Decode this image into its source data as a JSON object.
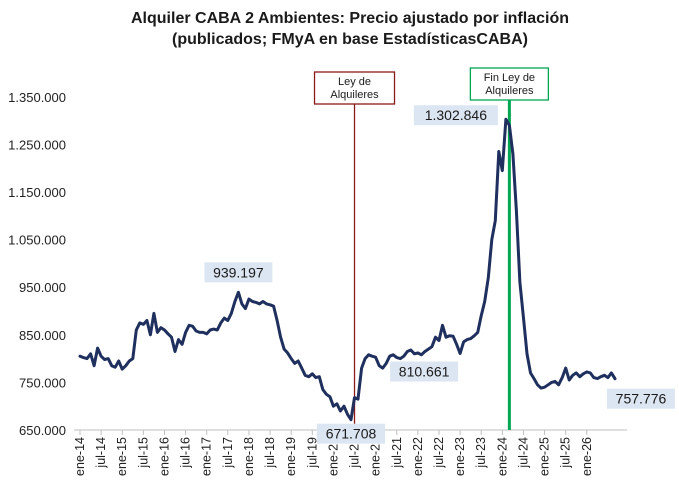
{
  "chart_data": {
    "type": "line",
    "title": "Alquiler CABA 2 Ambientes: Precio ajustado por inflación",
    "subtitle": "(publicados; FMyA en base EstadísticasCABA)",
    "ylim": [
      650000,
      1400000
    ],
    "yticks": [
      "650.000",
      "750.000",
      "850.000",
      "950.000",
      "1.050.000",
      "1.150.000",
      "1.250.000",
      "1.350.000"
    ],
    "ytick_values": [
      650000,
      750000,
      850000,
      950000,
      1050000,
      1150000,
      1250000,
      1350000
    ],
    "xticks": [
      "ene-14",
      "jul-14",
      "ene-15",
      "jul-15",
      "ene-16",
      "jul-16",
      "ene-17",
      "jul-17",
      "ene-18",
      "jul-18",
      "ene-19",
      "jul-19",
      "ene-20",
      "jul-20",
      "ene-21",
      "jul-21",
      "ene-22",
      "jul-22",
      "ene-23",
      "jul-23",
      "ene-24",
      "jul-24",
      "ene-25",
      "jul-25",
      "ene-26"
    ],
    "grid": false,
    "series": [
      {
        "color": "#1f2f5e",
        "points": [
          [
            "2014-01",
            805000
          ],
          [
            "2014-02",
            802000
          ],
          [
            "2014-03",
            800000
          ],
          [
            "2014-04",
            810000
          ],
          [
            "2014-05",
            785000
          ],
          [
            "2014-06",
            822000
          ],
          [
            "2014-07",
            805000
          ],
          [
            "2014-08",
            798000
          ],
          [
            "2014-09",
            800000
          ],
          [
            "2014-10",
            785000
          ],
          [
            "2014-11",
            782000
          ],
          [
            "2014-12",
            795000
          ],
          [
            "2015-01",
            778000
          ],
          [
            "2015-02",
            785000
          ],
          [
            "2015-03",
            795000
          ],
          [
            "2015-04",
            800000
          ],
          [
            "2015-05",
            860000
          ],
          [
            "2015-06",
            875000
          ],
          [
            "2015-07",
            872000
          ],
          [
            "2015-08",
            880000
          ],
          [
            "2015-09",
            850000
          ],
          [
            "2015-10",
            895000
          ],
          [
            "2015-11",
            855000
          ],
          [
            "2015-12",
            865000
          ],
          [
            "2016-01",
            860000
          ],
          [
            "2016-02",
            852000
          ],
          [
            "2016-03",
            845000
          ],
          [
            "2016-04",
            815000
          ],
          [
            "2016-05",
            840000
          ],
          [
            "2016-06",
            830000
          ],
          [
            "2016-07",
            855000
          ],
          [
            "2016-08",
            870000
          ],
          [
            "2016-09",
            868000
          ],
          [
            "2016-10",
            858000
          ],
          [
            "2016-11",
            855000
          ],
          [
            "2016-12",
            855000
          ],
          [
            "2017-01",
            852000
          ],
          [
            "2017-02",
            860000
          ],
          [
            "2017-03",
            862000
          ],
          [
            "2017-04",
            860000
          ],
          [
            "2017-05",
            875000
          ],
          [
            "2017-06",
            885000
          ],
          [
            "2017-07",
            880000
          ],
          [
            "2017-08",
            895000
          ],
          [
            "2017-09",
            920000
          ],
          [
            "2017-10",
            939197
          ],
          [
            "2017-11",
            915000
          ],
          [
            "2017-12",
            905000
          ],
          [
            "2018-01",
            925000
          ],
          [
            "2018-02",
            920000
          ],
          [
            "2018-03",
            918000
          ],
          [
            "2018-04",
            915000
          ],
          [
            "2018-05",
            920000
          ],
          [
            "2018-06",
            915000
          ],
          [
            "2018-07",
            913000
          ],
          [
            "2018-08",
            910000
          ],
          [
            "2018-09",
            880000
          ],
          [
            "2018-10",
            845000
          ],
          [
            "2018-11",
            820000
          ],
          [
            "2018-12",
            812000
          ],
          [
            "2019-01",
            800000
          ],
          [
            "2019-02",
            790000
          ],
          [
            "2019-03",
            795000
          ],
          [
            "2019-04",
            780000
          ],
          [
            "2019-05",
            765000
          ],
          [
            "2019-06",
            762000
          ],
          [
            "2019-07",
            768000
          ],
          [
            "2019-08",
            760000
          ],
          [
            "2019-09",
            762000
          ],
          [
            "2019-10",
            735000
          ],
          [
            "2019-11",
            725000
          ],
          [
            "2019-12",
            720000
          ],
          [
            "2020-01",
            700000
          ],
          [
            "2020-02",
            705000
          ],
          [
            "2020-03",
            690000
          ],
          [
            "2020-04",
            700000
          ],
          [
            "2020-05",
            683000
          ],
          [
            "2020-06",
            671708
          ],
          [
            "2020-07",
            718000
          ],
          [
            "2020-08",
            715000
          ],
          [
            "2020-09",
            780000
          ],
          [
            "2020-10",
            800000
          ],
          [
            "2020-11",
            808000
          ],
          [
            "2020-12",
            805000
          ],
          [
            "2021-01",
            803000
          ],
          [
            "2021-02",
            785000
          ],
          [
            "2021-03",
            780000
          ],
          [
            "2021-04",
            790000
          ],
          [
            "2021-05",
            805000
          ],
          [
            "2021-06",
            808000
          ],
          [
            "2021-07",
            802000
          ],
          [
            "2021-08",
            800000
          ],
          [
            "2021-09",
            805000
          ],
          [
            "2021-10",
            815000
          ],
          [
            "2021-11",
            818000
          ],
          [
            "2021-12",
            810000
          ],
          [
            "2022-01",
            812000
          ],
          [
            "2022-02",
            808000
          ],
          [
            "2022-03",
            815000
          ],
          [
            "2022-04",
            820000
          ],
          [
            "2022-05",
            825000
          ],
          [
            "2022-06",
            845000
          ],
          [
            "2022-07",
            838000
          ],
          [
            "2022-08",
            870000
          ],
          [
            "2022-09",
            845000
          ],
          [
            "2022-10",
            848000
          ],
          [
            "2022-11",
            847000
          ],
          [
            "2022-12",
            830000
          ],
          [
            "2023-01",
            810661
          ],
          [
            "2023-02",
            835000
          ],
          [
            "2023-03",
            840000
          ],
          [
            "2023-04",
            842000
          ],
          [
            "2023-05",
            848000
          ],
          [
            "2023-06",
            855000
          ],
          [
            "2023-07",
            890000
          ],
          [
            "2023-08",
            920000
          ],
          [
            "2023-09",
            970000
          ],
          [
            "2023-10",
            1050000
          ],
          [
            "2023-11",
            1090000
          ],
          [
            "2023-12",
            1235000
          ],
          [
            "2024-01",
            1195000
          ],
          [
            "2024-02",
            1302846
          ],
          [
            "2024-03",
            1290000
          ],
          [
            "2024-04",
            1230000
          ],
          [
            "2024-05",
            1110000
          ],
          [
            "2024-06",
            960000
          ],
          [
            "2024-07",
            885000
          ],
          [
            "2024-08",
            810000
          ],
          [
            "2024-09",
            770000
          ],
          [
            "2024-10",
            758000
          ],
          [
            "2024-11",
            745000
          ],
          [
            "2024-12",
            738000
          ],
          [
            "2025-01",
            740000
          ],
          [
            "2025-02",
            745000
          ],
          [
            "2025-03",
            750000
          ],
          [
            "2025-04",
            752000
          ],
          [
            "2025-05",
            745000
          ],
          [
            "2025-06",
            760000
          ],
          [
            "2025-07",
            780000
          ],
          [
            "2025-08",
            755000
          ],
          [
            "2025-09",
            765000
          ],
          [
            "2025-10",
            770000
          ],
          [
            "2025-11",
            762000
          ],
          [
            "2025-12",
            768000
          ],
          [
            "2026-01",
            772000
          ],
          [
            "2026-02",
            770000
          ],
          [
            "2026-03",
            760000
          ],
          [
            "2026-04",
            758000
          ],
          [
            "2026-05",
            762000
          ],
          [
            "2026-06",
            765000
          ],
          [
            "2026-07",
            760000
          ],
          [
            "2026-08",
            770000
          ],
          [
            "2026-09",
            757776
          ]
        ]
      }
    ],
    "annotations": [
      {
        "label": "939.197",
        "x": "2017-10",
        "y": 939197,
        "placement": "above"
      },
      {
        "label": "671.708",
        "x": "2020-06",
        "y": 671708,
        "placement": "below"
      },
      {
        "label": "810.661",
        "x": "2023-01",
        "y": 810661,
        "placement": "below-left"
      },
      {
        "label": "1.302.846",
        "x": "2024-02",
        "y": 1302846,
        "placement": "left"
      },
      {
        "label": "757.776",
        "x": "2026-09",
        "y": 757776,
        "placement": "below-right"
      }
    ],
    "markers": [
      {
        "label_lines": [
          "Ley de",
          "Alquileres"
        ],
        "x": "2020-07",
        "color": "#8b1a1a"
      },
      {
        "label_lines": [
          "Fin Ley de",
          "Alquileres"
        ],
        "x": "2024-03",
        "color": "#00a651"
      }
    ]
  }
}
